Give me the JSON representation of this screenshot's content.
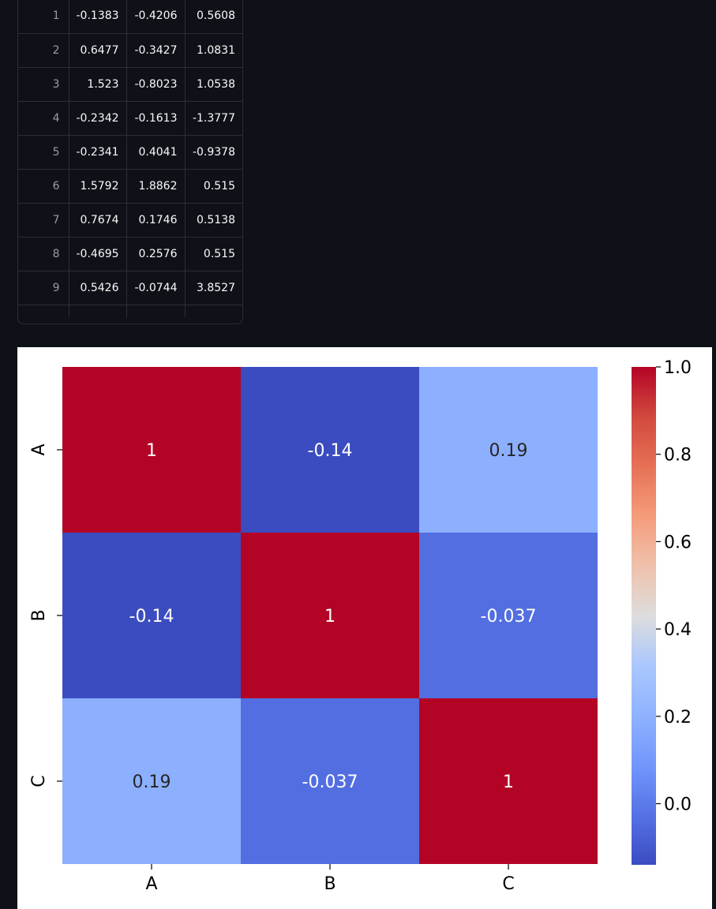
{
  "table": {
    "rows": [
      {
        "index": "1",
        "cells": [
          "-0.1383",
          "-0.4206",
          "0.5608"
        ]
      },
      {
        "index": "2",
        "cells": [
          "0.6477",
          "-0.3427",
          "1.0831"
        ]
      },
      {
        "index": "3",
        "cells": [
          "1.523",
          "-0.8023",
          "1.0538"
        ]
      },
      {
        "index": "4",
        "cells": [
          "-0.2342",
          "-0.1613",
          "-1.3777"
        ]
      },
      {
        "index": "5",
        "cells": [
          "-0.2341",
          "0.4041",
          "-0.9378"
        ]
      },
      {
        "index": "6",
        "cells": [
          "1.5792",
          "1.8862",
          "0.515"
        ]
      },
      {
        "index": "7",
        "cells": [
          "0.7674",
          "0.1746",
          "0.5138"
        ]
      },
      {
        "index": "8",
        "cells": [
          "-0.4695",
          "0.2576",
          "0.515"
        ]
      },
      {
        "index": "9",
        "cells": [
          "0.5426",
          "-0.0744",
          "3.8527"
        ]
      }
    ]
  },
  "chart_data": {
    "type": "heatmap",
    "x_categories": [
      "A",
      "B",
      "C"
    ],
    "y_categories": [
      "A",
      "B",
      "C"
    ],
    "values": [
      [
        1,
        -0.14,
        0.19
      ],
      [
        -0.14,
        1,
        -0.037
      ],
      [
        0.19,
        -0.037,
        1
      ]
    ],
    "annotations": [
      [
        "1",
        "-0.14",
        "0.19"
      ],
      [
        "-0.14",
        "1",
        "-0.037"
      ],
      [
        "0.19",
        "-0.037",
        "1"
      ]
    ],
    "colormap": "coolwarm",
    "colorbar": {
      "range": [
        -0.14,
        1.0
      ],
      "ticks": [
        0.0,
        0.2,
        0.4,
        0.6,
        0.8,
        1.0
      ],
      "tick_labels": [
        "0.0",
        "0.2",
        "0.4",
        "0.6",
        "0.8",
        "1.0"
      ]
    },
    "title": "",
    "xlabel": "",
    "ylabel": ""
  },
  "colors": {
    "app_background": "#0e1117",
    "table_border": "#2b2e38",
    "table_text": "#fafafa",
    "table_index_text": "#9a9ca6",
    "figure_background": "#ffffff"
  }
}
